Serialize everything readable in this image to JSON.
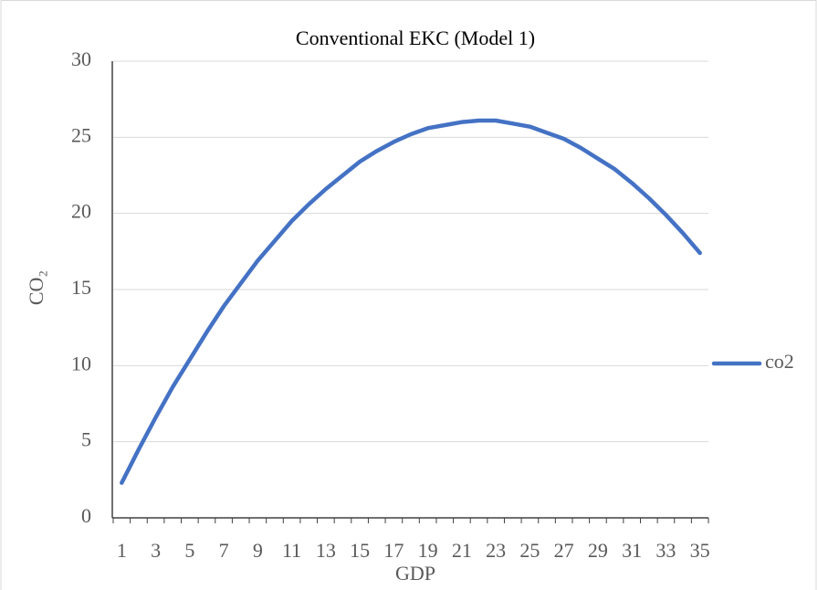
{
  "chart_data": {
    "type": "line",
    "title": "Conventional EKC (Model 1)",
    "x_label": "GDP",
    "y_label": "CO₂",
    "categories": [
      1,
      null,
      3,
      null,
      5,
      null,
      7,
      null,
      9,
      null,
      11,
      null,
      13,
      null,
      15,
      null,
      17,
      null,
      19,
      null,
      21,
      null,
      23,
      null,
      25,
      null,
      27,
      null,
      29,
      null,
      31,
      null,
      33,
      null,
      35
    ],
    "series": [
      {
        "name": "co2",
        "color": "#4472c4",
        "values": [
          2.3,
          4.5,
          6.6,
          8.6,
          10.4,
          12.2,
          13.9,
          15.4,
          16.9,
          18.2,
          19.5,
          20.6,
          21.6,
          22.5,
          23.4,
          24.1,
          24.7,
          25.2,
          25.6,
          25.8,
          26.0,
          26.1,
          26.1,
          25.9,
          25.7,
          25.3,
          24.9,
          24.3,
          23.6,
          22.9,
          22.0,
          21.0,
          19.9,
          18.7,
          17.4
        ]
      }
    ],
    "ylim": [
      0,
      30
    ],
    "yticks": [
      0,
      5,
      10,
      15,
      20,
      25,
      30
    ],
    "grid": true,
    "legend": "right"
  }
}
